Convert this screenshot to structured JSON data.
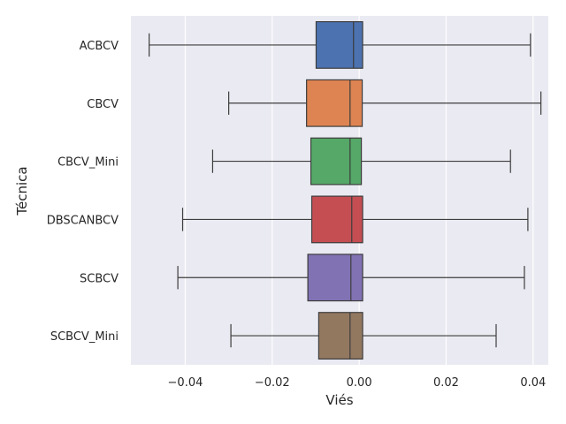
{
  "chart_data": {
    "type": "boxplot",
    "orientation": "horizontal",
    "title": "",
    "xlabel": "Viés",
    "ylabel": "Técnica",
    "xlim": [
      -0.0525,
      0.0435
    ],
    "x_ticks": [
      -0.04,
      -0.02,
      0.0,
      0.02,
      0.04
    ],
    "x_tick_labels": [
      "−0.04",
      "−0.02",
      "0.00",
      "0.02",
      "0.04"
    ],
    "grid": true,
    "categories": [
      "ACBCV",
      "CBCV",
      "CBCV_Mini",
      "DBSCANBCV",
      "SCBCV",
      "SCBCV_Mini"
    ],
    "boxes": [
      {
        "name": "ACBCV",
        "whisker_low": -0.0483,
        "q1": -0.0099,
        "median": -0.0013,
        "q3": 0.0008,
        "whisker_high": 0.0394,
        "color": "#4c72b0"
      },
      {
        "name": "CBCV",
        "whisker_low": -0.03,
        "q1": -0.0121,
        "median": -0.0021,
        "q3": 0.0007,
        "whisker_high": 0.0418,
        "color": "#dd8452"
      },
      {
        "name": "CBCV_Mini",
        "whisker_low": -0.0337,
        "q1": -0.0111,
        "median": -0.0021,
        "q3": 0.0005,
        "whisker_high": 0.0348,
        "color": "#55a868"
      },
      {
        "name": "DBSCANBCV",
        "whisker_low": -0.0406,
        "q1": -0.0109,
        "median": -0.0017,
        "q3": 0.0008,
        "whisker_high": 0.0388,
        "color": "#c44e52"
      },
      {
        "name": "SCBCV",
        "whisker_low": -0.0417,
        "q1": -0.0118,
        "median": -0.0019,
        "q3": 0.0008,
        "whisker_high": 0.038,
        "color": "#8172b3"
      },
      {
        "name": "SCBCV_Mini",
        "whisker_low": -0.0295,
        "q1": -0.0093,
        "median": -0.0021,
        "q3": 0.0008,
        "whisker_high": 0.0315,
        "color": "#937860"
      }
    ],
    "colors": {
      "background": "#eaeaf2",
      "grid": "#ffffff",
      "lines": "#3d3d3d"
    }
  }
}
